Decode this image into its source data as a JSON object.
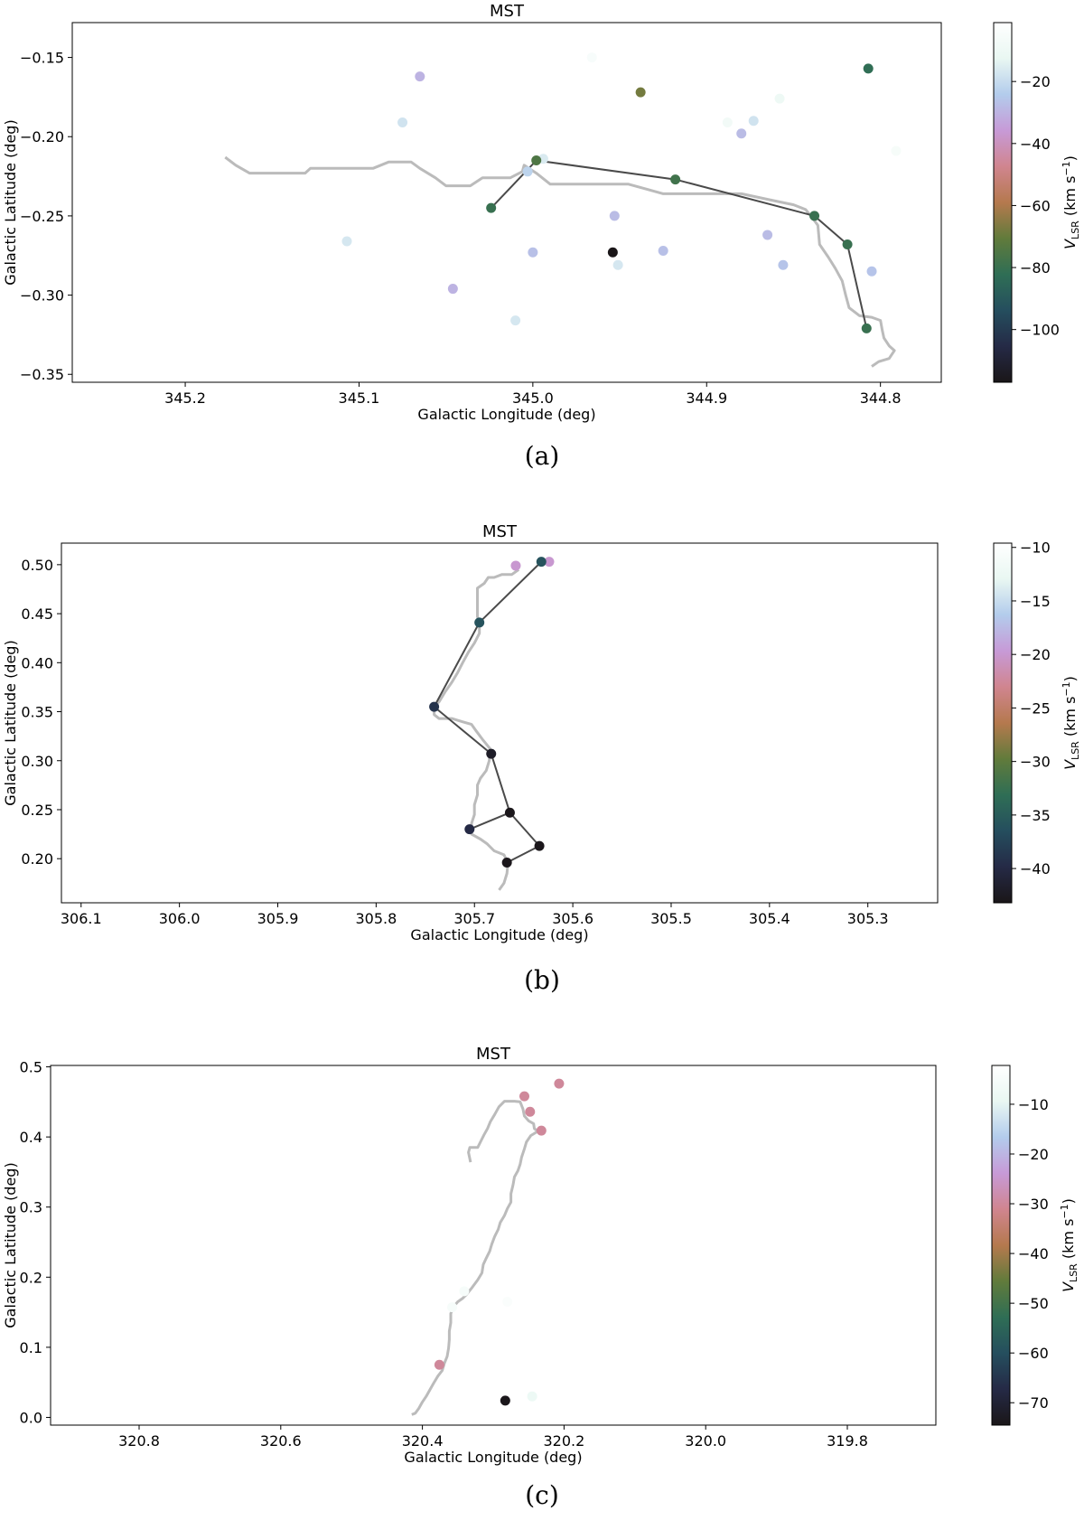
{
  "colorbar_palette": [
    "#1a1618",
    "#252a46",
    "#254e5e",
    "#2f6e55",
    "#617b3b",
    "#b5794e",
    "#d0858f",
    "#c79ad7",
    "#b3ccec",
    "#e9f7f2",
    "#ffffff"
  ],
  "mst_line_color": "#4a4a4a",
  "skeleton_color": "#bbbbbb",
  "chart_data": [
    {
      "type": "scatter",
      "panel_caption": "(a)",
      "title": "MST",
      "xlabel": "Galactic Longitude (deg)",
      "ylabel": "Galactic Latitude (deg)",
      "xlim": [
        345.265,
        344.765
      ],
      "ylim": [
        -0.355,
        -0.128
      ],
      "xticks": [
        345.2,
        345.1,
        345.0,
        344.9,
        344.8
      ],
      "xtick_labels": [
        "345.2",
        "345.1",
        "345.0",
        "344.9",
        "344.8"
      ],
      "yticks": [
        -0.15,
        -0.2,
        -0.25,
        -0.3,
        -0.35
      ],
      "ytick_labels": [
        "−0.15",
        "−0.20",
        "−0.25",
        "−0.30",
        "−0.35"
      ],
      "colorbar": {
        "label": "V_LSR (km s⁻¹)",
        "min": -117,
        "max": -1,
        "ticks": [
          -20,
          -40,
          -60,
          -80,
          -100
        ],
        "tick_labels": [
          "−20",
          "−40",
          "−60",
          "−80",
          "−100"
        ]
      },
      "points": [
        {
          "l": 344.966,
          "b": -0.15,
          "v": -5
        },
        {
          "l": 345.065,
          "b": -0.162,
          "v": -30
        },
        {
          "l": 345.075,
          "b": -0.191,
          "v": -18
        },
        {
          "l": 344.938,
          "b": -0.172,
          "v": -68
        },
        {
          "l": 344.807,
          "b": -0.157,
          "v": -82
        },
        {
          "l": 344.858,
          "b": -0.176,
          "v": -10
        },
        {
          "l": 344.873,
          "b": -0.19,
          "v": -18
        },
        {
          "l": 344.888,
          "b": -0.191,
          "v": -8
        },
        {
          "l": 344.88,
          "b": -0.198,
          "v": -28
        },
        {
          "l": 344.791,
          "b": -0.209,
          "v": -6
        },
        {
          "l": 344.994,
          "b": -0.214,
          "v": -16
        },
        {
          "l": 345.003,
          "b": -0.222,
          "v": -22
        },
        {
          "l": 344.998,
          "b": -0.215,
          "v": -75
        },
        {
          "l": 344.918,
          "b": -0.227,
          "v": -78
        },
        {
          "l": 345.024,
          "b": -0.245,
          "v": -80
        },
        {
          "l": 344.838,
          "b": -0.25,
          "v": -80
        },
        {
          "l": 344.953,
          "b": -0.25,
          "v": -28
        },
        {
          "l": 345.107,
          "b": -0.266,
          "v": -17
        },
        {
          "l": 344.865,
          "b": -0.262,
          "v": -28
        },
        {
          "l": 344.819,
          "b": -0.268,
          "v": -80
        },
        {
          "l": 345.0,
          "b": -0.273,
          "v": -27
        },
        {
          "l": 344.954,
          "b": -0.273,
          "v": -117
        },
        {
          "l": 344.925,
          "b": -0.272,
          "v": -27
        },
        {
          "l": 344.951,
          "b": -0.281,
          "v": -17
        },
        {
          "l": 344.856,
          "b": -0.281,
          "v": -26
        },
        {
          "l": 344.805,
          "b": -0.285,
          "v": -26
        },
        {
          "l": 345.046,
          "b": -0.296,
          "v": -30
        },
        {
          "l": 345.01,
          "b": -0.316,
          "v": -17
        },
        {
          "l": 344.808,
          "b": -0.321,
          "v": -80
        }
      ],
      "mst_edges": [
        [
          [
            345.024,
            -0.245
          ],
          [
            344.998,
            -0.215
          ]
        ],
        [
          [
            344.998,
            -0.215
          ],
          [
            344.918,
            -0.227
          ]
        ],
        [
          [
            344.918,
            -0.227
          ],
          [
            344.838,
            -0.25
          ]
        ],
        [
          [
            344.838,
            -0.25
          ],
          [
            344.819,
            -0.268
          ]
        ],
        [
          [
            344.819,
            -0.268
          ],
          [
            344.808,
            -0.321
          ]
        ]
      ],
      "skeleton": [
        [
          345.177,
          -0.213
        ],
        [
          345.171,
          -0.218
        ],
        [
          345.163,
          -0.223
        ],
        [
          345.148,
          -0.223
        ],
        [
          345.131,
          -0.223
        ],
        [
          345.128,
          -0.22
        ],
        [
          345.11,
          -0.22
        ],
        [
          345.092,
          -0.22
        ],
        [
          345.083,
          -0.216
        ],
        [
          345.07,
          -0.216
        ],
        [
          345.065,
          -0.22
        ],
        [
          345.056,
          -0.226
        ],
        [
          345.05,
          -0.231
        ],
        [
          345.036,
          -0.231
        ],
        [
          345.029,
          -0.226
        ],
        [
          345.024,
          -0.226
        ],
        [
          345.013,
          -0.226
        ],
        [
          345.006,
          -0.222
        ],
        [
          345.005,
          -0.218
        ],
        [
          344.998,
          -0.223
        ],
        [
          344.99,
          -0.23
        ],
        [
          344.965,
          -0.23
        ],
        [
          344.945,
          -0.23
        ],
        [
          344.935,
          -0.233
        ],
        [
          344.925,
          -0.236
        ],
        [
          344.905,
          -0.236
        ],
        [
          344.88,
          -0.236
        ],
        [
          344.863,
          -0.24
        ],
        [
          344.85,
          -0.243
        ],
        [
          344.843,
          -0.246
        ],
        [
          344.84,
          -0.25
        ],
        [
          344.836,
          -0.256
        ],
        [
          344.835,
          -0.268
        ],
        [
          344.83,
          -0.276
        ],
        [
          344.826,
          -0.283
        ],
        [
          344.822,
          -0.291
        ],
        [
          344.82,
          -0.3
        ],
        [
          344.818,
          -0.308
        ],
        [
          344.812,
          -0.313
        ],
        [
          344.805,
          -0.314
        ],
        [
          344.8,
          -0.316
        ],
        [
          344.799,
          -0.322
        ],
        [
          344.798,
          -0.327
        ],
        [
          344.795,
          -0.332
        ],
        [
          344.792,
          -0.335
        ],
        [
          344.795,
          -0.34
        ],
        [
          344.801,
          -0.342
        ],
        [
          344.805,
          -0.345
        ]
      ]
    },
    {
      "type": "scatter",
      "panel_caption": "(b)",
      "title": "MST",
      "xlabel": "Galactic Longitude (deg)",
      "ylabel": "Galactic Latitude (deg)",
      "xlim": [
        306.12,
        305.229
      ],
      "ylim": [
        0.155,
        0.522
      ],
      "xticks": [
        306.1,
        306.0,
        305.9,
        305.8,
        305.7,
        305.6,
        305.5,
        305.4,
        305.3
      ],
      "xtick_labels": [
        "306.1",
        "306.0",
        "305.9",
        "305.8",
        "305.7",
        "305.6",
        "305.5",
        "305.4",
        "305.3"
      ],
      "yticks": [
        0.5,
        0.45,
        0.4,
        0.35,
        0.3,
        0.25,
        0.2
      ],
      "ytick_labels": [
        "0.50",
        "0.45",
        "0.40",
        "0.35",
        "0.30",
        "0.25",
        "0.20"
      ],
      "colorbar": {
        "label": "V_LSR (km s⁻¹)",
        "min": -43.2,
        "max": -9.6,
        "ticks": [
          -10,
          -15,
          -20,
          -25,
          -30,
          -35,
          -40
        ],
        "tick_labels": [
          "−10",
          "−15",
          "−20",
          "−25",
          "−30",
          "−35",
          "−40"
        ]
      },
      "points": [
        {
          "l": 305.658,
          "b": 0.499,
          "v": -20
        },
        {
          "l": 305.624,
          "b": 0.503,
          "v": -20
        },
        {
          "l": 305.632,
          "b": 0.503,
          "v": -36
        },
        {
          "l": 305.695,
          "b": 0.441,
          "v": -36
        },
        {
          "l": 305.741,
          "b": 0.355,
          "v": -39
        },
        {
          "l": 305.683,
          "b": 0.307,
          "v": -42
        },
        {
          "l": 305.664,
          "b": 0.247,
          "v": -43
        },
        {
          "l": 305.705,
          "b": 0.23,
          "v": -40
        },
        {
          "l": 305.634,
          "b": 0.213,
          "v": -43
        },
        {
          "l": 305.667,
          "b": 0.196,
          "v": -43
        }
      ],
      "mst_edges": [
        [
          [
            305.632,
            0.503
          ],
          [
            305.695,
            0.441
          ]
        ],
        [
          [
            305.695,
            0.441
          ],
          [
            305.741,
            0.355
          ]
        ],
        [
          [
            305.741,
            0.355
          ],
          [
            305.683,
            0.307
          ]
        ],
        [
          [
            305.683,
            0.307
          ],
          [
            305.664,
            0.247
          ]
        ],
        [
          [
            305.664,
            0.247
          ],
          [
            305.705,
            0.23
          ]
        ],
        [
          [
            305.664,
            0.247
          ],
          [
            305.634,
            0.213
          ]
        ],
        [
          [
            305.634,
            0.213
          ],
          [
            305.667,
            0.196
          ]
        ]
      ],
      "skeleton": [
        [
          305.655,
          0.495
        ],
        [
          305.662,
          0.49
        ],
        [
          305.672,
          0.49
        ],
        [
          305.68,
          0.487
        ],
        [
          305.686,
          0.487
        ],
        [
          305.69,
          0.481
        ],
        [
          305.697,
          0.476
        ],
        [
          305.697,
          0.468
        ],
        [
          305.697,
          0.458
        ],
        [
          305.697,
          0.447
        ],
        [
          305.695,
          0.441
        ],
        [
          305.695,
          0.43
        ],
        [
          305.7,
          0.42
        ],
        [
          305.706,
          0.411
        ],
        [
          305.712,
          0.4
        ],
        [
          305.717,
          0.39
        ],
        [
          305.723,
          0.38
        ],
        [
          305.73,
          0.37
        ],
        [
          305.736,
          0.36
        ],
        [
          305.741,
          0.355
        ],
        [
          305.741,
          0.347
        ],
        [
          305.736,
          0.343
        ],
        [
          305.723,
          0.343
        ],
        [
          305.713,
          0.34
        ],
        [
          305.703,
          0.337
        ],
        [
          305.698,
          0.33
        ],
        [
          305.692,
          0.322
        ],
        [
          305.684,
          0.312
        ],
        [
          305.685,
          0.3
        ],
        [
          305.688,
          0.29
        ],
        [
          305.694,
          0.282
        ],
        [
          305.697,
          0.275
        ],
        [
          305.697,
          0.265
        ],
        [
          305.7,
          0.255
        ],
        [
          305.7,
          0.245
        ],
        [
          305.703,
          0.236
        ],
        [
          305.703,
          0.225
        ],
        [
          305.694,
          0.22
        ],
        [
          305.687,
          0.215
        ],
        [
          305.68,
          0.208
        ],
        [
          305.67,
          0.204
        ],
        [
          305.666,
          0.196
        ],
        [
          305.667,
          0.185
        ],
        [
          305.67,
          0.175
        ],
        [
          305.675,
          0.168
        ]
      ]
    },
    {
      "type": "scatter",
      "panel_caption": "(c)",
      "title": "MST",
      "xlabel": "Galactic Longitude (deg)",
      "ylabel": "Galactic Latitude (deg)",
      "xlim": [
        320.925,
        319.675
      ],
      "ylim": [
        -0.011,
        0.502
      ],
      "xticks": [
        320.8,
        320.6,
        320.4,
        320.2,
        320.0,
        319.8
      ],
      "xtick_labels": [
        "320.8",
        "320.6",
        "320.4",
        "320.2",
        "320.0",
        "319.8"
      ],
      "yticks": [
        0.5,
        0.4,
        0.3,
        0.2,
        0.1,
        0.0
      ],
      "ytick_labels": [
        "0.5",
        "0.4",
        "0.3",
        "0.2",
        "0.1",
        "0.0"
      ],
      "colorbar": {
        "label": "V_LSR (km s⁻¹)",
        "min": -74.5,
        "max": -2.2,
        "ticks": [
          -10,
          -20,
          -30,
          -40,
          -50,
          -60,
          -70
        ],
        "tick_labels": [
          "−10",
          "−20",
          "−30",
          "−40",
          "−50",
          "−60",
          "−70"
        ]
      },
      "points": [
        {
          "l": 320.207,
          "b": 0.476,
          "v": -30
        },
        {
          "l": 320.256,
          "b": 0.458,
          "v": -30
        },
        {
          "l": 320.248,
          "b": 0.436,
          "v": -30
        },
        {
          "l": 320.232,
          "b": 0.409,
          "v": -30
        },
        {
          "l": 320.341,
          "b": 0.18,
          "v": -5
        },
        {
          "l": 320.28,
          "b": 0.165,
          "v": -4
        },
        {
          "l": 320.358,
          "b": 0.157,
          "v": -5
        },
        {
          "l": 320.376,
          "b": 0.075,
          "v": -30
        },
        {
          "l": 320.283,
          "b": 0.024,
          "v": -74
        },
        {
          "l": 320.245,
          "b": 0.03,
          "v": -8
        }
      ],
      "mst_edges": [],
      "skeleton": [
        [
          320.332,
          0.364
        ],
        [
          320.335,
          0.378
        ],
        [
          320.333,
          0.385
        ],
        [
          320.322,
          0.385
        ],
        [
          320.317,
          0.395
        ],
        [
          320.313,
          0.403
        ],
        [
          320.308,
          0.412
        ],
        [
          320.304,
          0.422
        ],
        [
          320.298,
          0.432
        ],
        [
          320.292,
          0.443
        ],
        [
          320.284,
          0.451
        ],
        [
          320.27,
          0.451
        ],
        [
          320.262,
          0.45
        ],
        [
          320.258,
          0.44
        ],
        [
          320.256,
          0.43
        ],
        [
          320.25,
          0.423
        ],
        [
          320.243,
          0.419
        ],
        [
          320.242,
          0.412
        ],
        [
          320.237,
          0.408
        ],
        [
          320.247,
          0.402
        ],
        [
          320.253,
          0.393
        ],
        [
          320.256,
          0.383
        ],
        [
          320.26,
          0.371
        ],
        [
          320.262,
          0.361
        ],
        [
          320.265,
          0.352
        ],
        [
          320.27,
          0.343
        ],
        [
          320.272,
          0.332
        ],
        [
          320.275,
          0.319
        ],
        [
          320.275,
          0.307
        ],
        [
          320.28,
          0.298
        ],
        [
          320.284,
          0.288
        ],
        [
          320.29,
          0.278
        ],
        [
          320.293,
          0.268
        ],
        [
          320.298,
          0.258
        ],
        [
          320.302,
          0.247
        ],
        [
          320.305,
          0.237
        ],
        [
          320.31,
          0.227
        ],
        [
          320.314,
          0.218
        ],
        [
          320.316,
          0.206
        ],
        [
          320.322,
          0.196
        ],
        [
          320.33,
          0.185
        ],
        [
          320.338,
          0.175
        ],
        [
          320.343,
          0.17
        ],
        [
          320.35,
          0.165
        ],
        [
          320.356,
          0.158
        ],
        [
          320.36,
          0.148
        ],
        [
          320.36,
          0.135
        ],
        [
          320.362,
          0.123
        ],
        [
          320.362,
          0.111
        ],
        [
          320.363,
          0.099
        ],
        [
          320.365,
          0.087
        ],
        [
          320.369,
          0.077
        ],
        [
          320.372,
          0.067
        ],
        [
          320.378,
          0.059
        ],
        [
          320.384,
          0.049
        ],
        [
          320.389,
          0.04
        ],
        [
          320.394,
          0.031
        ],
        [
          320.4,
          0.022
        ],
        [
          320.405,
          0.013
        ],
        [
          320.41,
          0.006
        ],
        [
          320.415,
          0.004
        ]
      ]
    }
  ]
}
